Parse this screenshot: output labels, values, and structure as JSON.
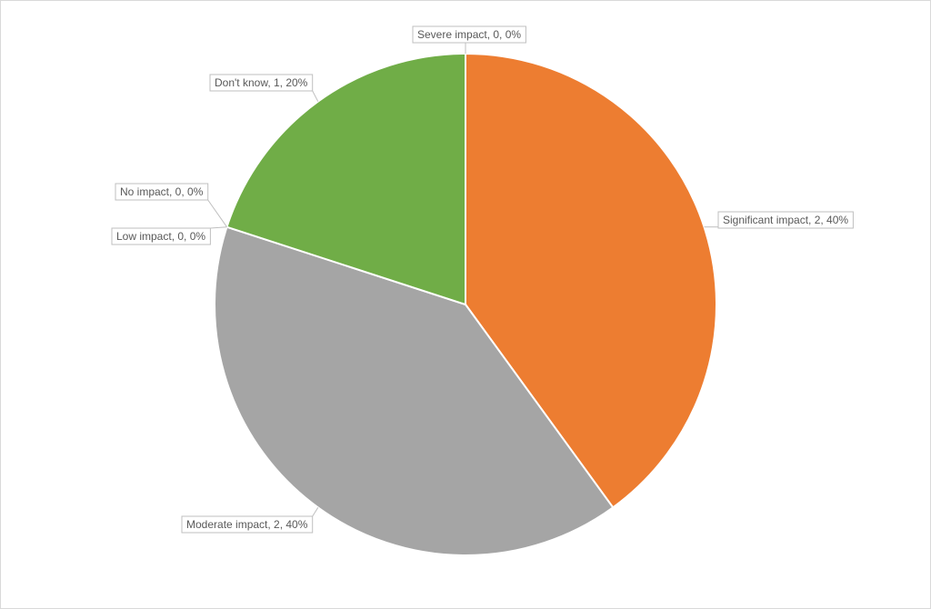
{
  "chart_data": {
    "type": "pie",
    "title": "",
    "legend": "none",
    "start_angle_deg": 0,
    "direction": "clockwise",
    "slices": [
      {
        "name": "Significant impact",
        "value": 2,
        "percent": 40,
        "color": "#ED7D31",
        "label": "Significant impact, 2, 40%"
      },
      {
        "name": "Moderate impact",
        "value": 2,
        "percent": 40,
        "color": "#A5A5A5",
        "label": "Moderate impact, 2, 40%"
      },
      {
        "name": "Low impact",
        "value": 0,
        "percent": 0,
        "color": "#FFC000",
        "label": "Low impact, 0, 0%"
      },
      {
        "name": "No impact",
        "value": 0,
        "percent": 0,
        "color": "#4472C4",
        "label": "No impact, 0, 0%"
      },
      {
        "name": "Don't know",
        "value": 1,
        "percent": 20,
        "color": "#70AD47",
        "label": "Don't know, 1, 20%"
      },
      {
        "name": "Severe impact",
        "value": 0,
        "percent": 0,
        "color": "#5B9BD5",
        "label": "Severe impact, 0, 0%"
      }
    ]
  }
}
